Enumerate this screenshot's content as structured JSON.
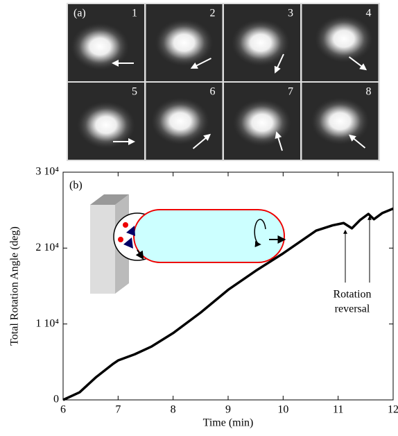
{
  "panel_a": {
    "label": "(a)",
    "frames": [
      "1",
      "2",
      "3",
      "4",
      "5",
      "6",
      "7",
      "8"
    ]
  },
  "chart_data": {
    "type": "line",
    "panel_label": "(b)",
    "xlabel": "Time (min)",
    "ylabel": "Total Rotation Angle (deg)",
    "annotation": [
      "Rotation",
      "reversal"
    ],
    "xlim": [
      6,
      12
    ],
    "xticks": [
      6,
      7,
      8,
      9,
      10,
      11,
      12
    ],
    "ylim": [
      0,
      30000
    ],
    "yticks": [
      0,
      {
        "value": 10000,
        "label": "1 10⁴"
      },
      {
        "value": 20000,
        "label": "2 10⁴"
      },
      {
        "value": 30000,
        "label": "3 10⁴"
      }
    ],
    "series": [
      {
        "color": "#000000",
        "x": [
          6.0,
          6.3,
          6.6,
          6.9,
          7.0,
          7.3,
          7.6,
          8.0,
          8.5,
          9.0,
          9.5,
          10.0,
          10.3,
          10.6,
          10.9,
          11.1,
          11.25,
          11.4,
          11.55,
          11.65,
          11.8,
          12.0
        ],
        "values": [
          0,
          1000,
          3000,
          4700,
          5200,
          6000,
          7000,
          8800,
          11500,
          14500,
          17000,
          19300,
          20800,
          22300,
          23000,
          23300,
          22600,
          23700,
          24500,
          23800,
          24600,
          25200
        ]
      }
    ]
  }
}
